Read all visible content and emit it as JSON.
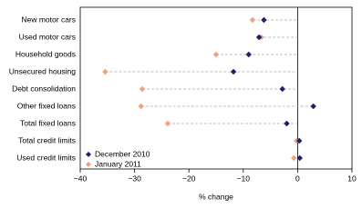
{
  "chart_data": {
    "type": "dot",
    "categories": [
      "New motor cars",
      "Used motor cars",
      "Household goods",
      "Unsecured housing",
      "Debt consolidation",
      "Other fixed loans",
      "Total fixed loans",
      "Total credit limits",
      "Used credit limits"
    ],
    "series": [
      {
        "name": "December 2010",
        "color": "#1f1f6b",
        "values": [
          -6.2,
          -7.1,
          -9,
          -11.8,
          -2.8,
          2.9,
          -2,
          0.3,
          0.4
        ]
      },
      {
        "name": "January 2011",
        "color": "#f0a07c",
        "values": [
          -8.3,
          -6.7,
          -15,
          -35.4,
          -28.6,
          -28.8,
          -23.9,
          -0.2,
          -0.7
        ]
      }
    ],
    "xlabel": "% change",
    "xlim": [
      -40,
      10
    ],
    "xticks": [
      {
        "value": -40,
        "label": "−40"
      },
      {
        "value": -30,
        "label": "−30"
      },
      {
        "value": -20,
        "label": "−20"
      },
      {
        "value": -10,
        "label": "−10"
      },
      0,
      10
    ],
    "legend": "lower left"
  }
}
